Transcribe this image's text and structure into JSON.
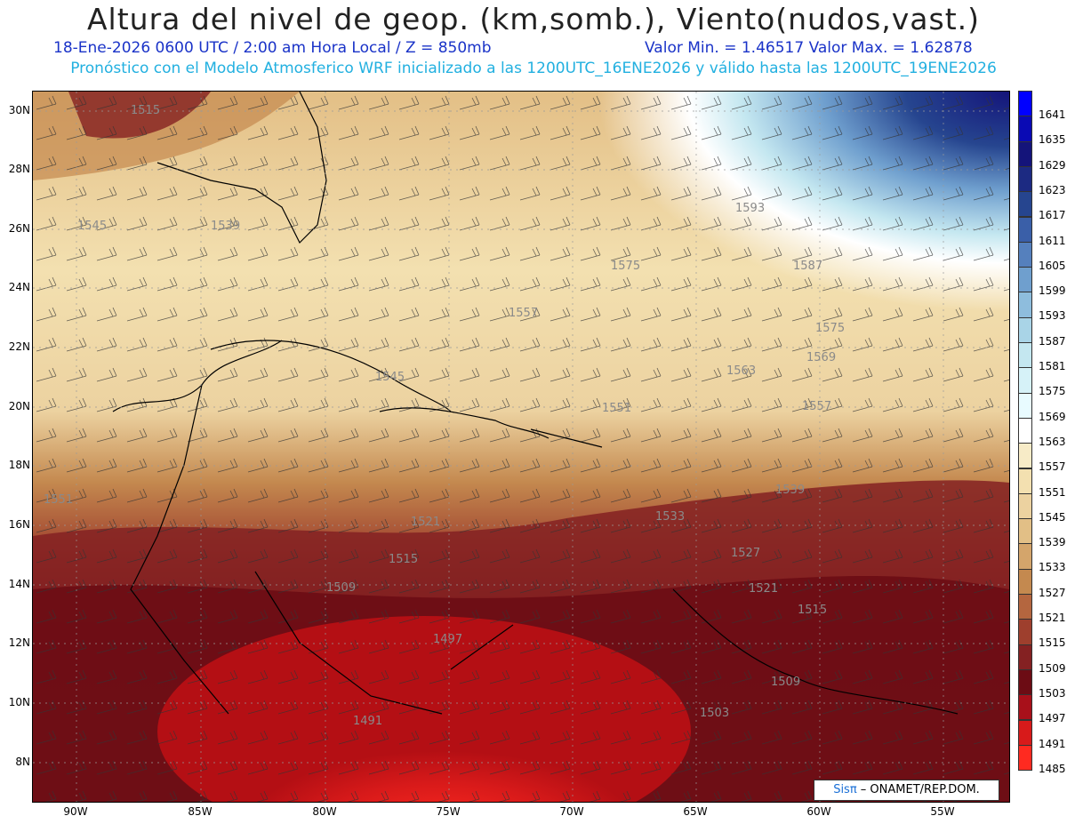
{
  "header": {
    "title": "Altura del nivel de geop. (km,somb.), Viento(nudos,vast.)",
    "date_line": "18-Ene-2026  0600 UTC / 2:00 am Hora Local / Z = 850mb",
    "minmax_line": "Valor Min. = 1.46517  Valor Max. = 1.62878",
    "model_line": "Pronóstico con el Modelo Atmosferico WRF inicializado a las 1200UTC_16ENE2026 y válido hasta las  1200UTC_19ENE2026"
  },
  "lat_labels": [
    "30N",
    "28N",
    "26N",
    "24N",
    "22N",
    "20N",
    "18N",
    "16N",
    "14N",
    "12N",
    "10N",
    "8N"
  ],
  "lon_labels": [
    "90W",
    "85W",
    "80W",
    "75W",
    "70W",
    "65W",
    "60W",
    "55W"
  ],
  "colorbar": {
    "levels": [
      "1641",
      "1635",
      "1629",
      "1623",
      "1617",
      "1611",
      "1605",
      "1599",
      "1593",
      "1587",
      "1581",
      "1575",
      "1569",
      "1563",
      "1557",
      "1551",
      "1545",
      "1539",
      "1533",
      "1527",
      "1521",
      "1515",
      "1509",
      "1503",
      "1497",
      "1491",
      "1485"
    ],
    "colors": [
      "#0000ff",
      "#0a0ab4",
      "#14147a",
      "#1c2a82",
      "#26458f",
      "#3a5fa8",
      "#5580bd",
      "#6f9fce",
      "#8ebddd",
      "#a9d4e7",
      "#c4e7f0",
      "#d6f2f8",
      "#e8fbff",
      "#ffffff",
      "#f7ebc7",
      "#f3e0b0",
      "#ecd2a0",
      "#e2bf86",
      "#d4a56b",
      "#c4894f",
      "#b4663f",
      "#9e3f2d",
      "#842122",
      "#6c0c14",
      "#a8101a",
      "#d81a1a",
      "#ff2a20"
    ]
  },
  "map_labels": [
    "1515",
    "1545",
    "1539",
    "1557",
    "1575",
    "1593",
    "1587",
    "1575",
    "1569",
    "1563",
    "1557",
    "1551",
    "1545",
    "1539",
    "1533",
    "1521",
    "1527",
    "1521",
    "1515",
    "1509",
    "1497",
    "1491",
    "1503",
    "1509",
    "1515",
    "1551"
  ],
  "credit": {
    "logo": "Sisπ",
    "text": " – ONAMET/REP.DOM."
  }
}
